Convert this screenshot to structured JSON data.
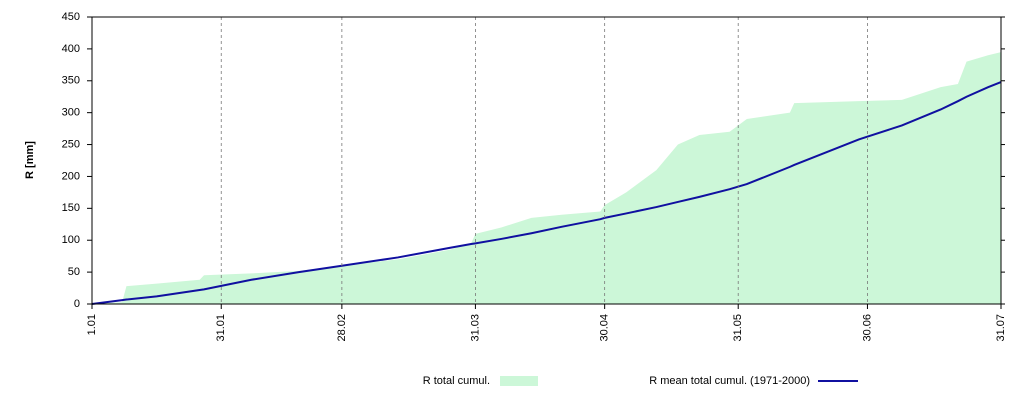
{
  "chart_data": {
    "type": "line",
    "y_label": "R [mm]",
    "x": [
      0,
      7,
      8,
      15,
      25,
      26,
      37,
      48,
      58,
      71,
      83,
      88,
      89,
      95,
      102,
      109,
      118,
      119,
      124,
      131,
      136,
      141,
      148,
      152,
      162,
      163,
      178,
      188,
      197,
      201,
      203,
      208,
      211
    ],
    "xlim": [
      0,
      211
    ],
    "xticks": [
      {
        "value": 0,
        "label": "1.01"
      },
      {
        "value": 30,
        "label": "31.01"
      },
      {
        "value": 58,
        "label": "28.02"
      },
      {
        "value": 89,
        "label": "31.03"
      },
      {
        "value": 119,
        "label": "30.04"
      },
      {
        "value": 150,
        "label": "31.05"
      },
      {
        "value": 180,
        "label": "30.06"
      },
      {
        "value": 211,
        "label": "31.07"
      }
    ],
    "ylim": [
      0,
      450
    ],
    "yticks": [
      0,
      50,
      100,
      150,
      200,
      250,
      300,
      350,
      400,
      450
    ],
    "grid": true,
    "series": [
      {
        "name": "R total cumul.",
        "kind": "area",
        "color": "#ccf7d8",
        "values": [
          0,
          3,
          28,
          32,
          38,
          45,
          48,
          52,
          60,
          70,
          85,
          95,
          110,
          120,
          135,
          140,
          145,
          155,
          175,
          210,
          250,
          265,
          270,
          290,
          300,
          315,
          318,
          320,
          340,
          345,
          380,
          390,
          395
        ]
      },
      {
        "name": "R mean total cumul. (1971-2000)",
        "kind": "line",
        "color": "#1010a0",
        "values": [
          0,
          6,
          7,
          12,
          22,
          23,
          38,
          50,
          60,
          73,
          88,
          94,
          95,
          102,
          111,
          121,
          133,
          135,
          142,
          152,
          160,
          168,
          180,
          188,
          215,
          218,
          258,
          280,
          305,
          318,
          325,
          340,
          348
        ]
      }
    ]
  }
}
